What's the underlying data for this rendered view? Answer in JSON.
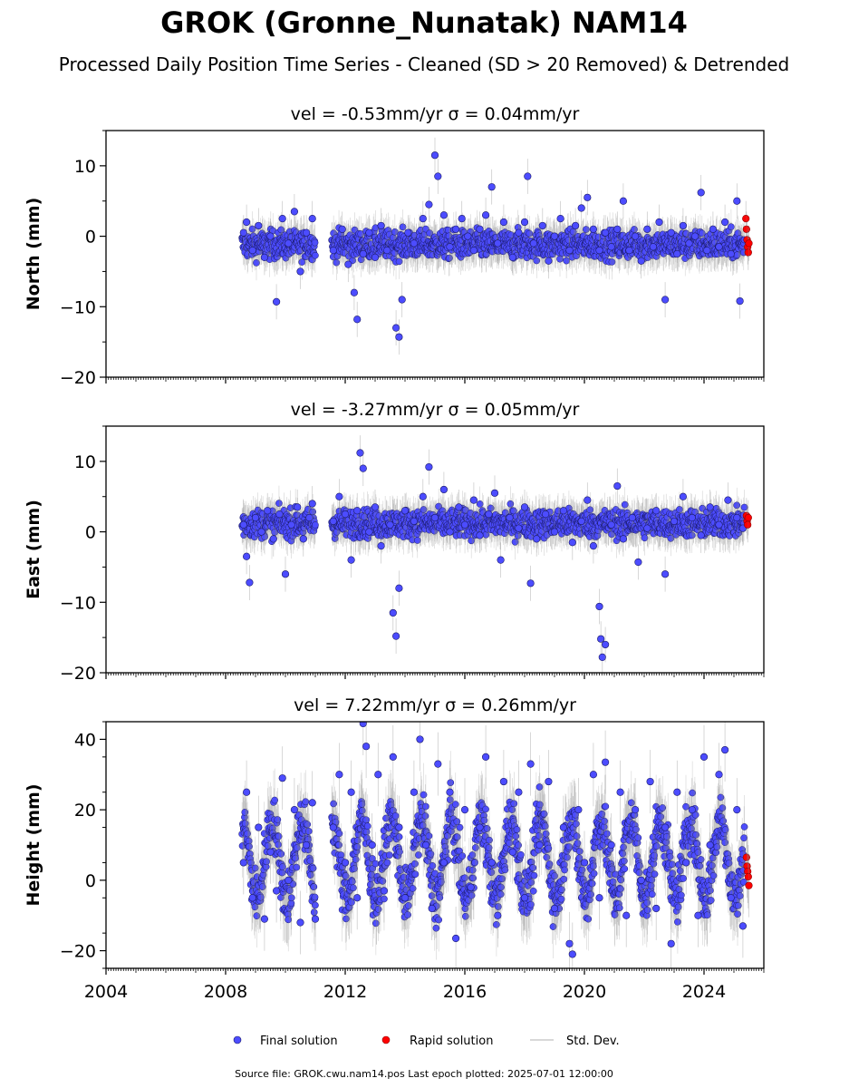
{
  "title": "GROK (Gronne_Nunatak) NAM14",
  "subtitle": "Processed Daily Position Time Series - Cleaned (SD > 20 Removed) & Detrended",
  "legend": {
    "final": "Final solution",
    "rapid": "Rapid solution",
    "std": "Std. Dev.",
    "placement": "bottom-center"
  },
  "footer": "Source file: GROK.cwu.nam14.pos  Last epoch plotted: 2025-07-01 12:00:00",
  "colors": {
    "final_fill": "#4c4cff",
    "final_edge": "#1a1a66",
    "rapid_fill": "#ff0000",
    "rapid_edge": "#8b0000",
    "errorbar": "#808080"
  },
  "chart_data": [
    {
      "type": "scatter",
      "component": "north",
      "title": "vel = -0.53mm/yr   σ = 0.04mm/yr",
      "ylabel": "North (mm)",
      "xlim": [
        2004.0,
        2026.0
      ],
      "ylim": [
        -20,
        15
      ],
      "yticks": [
        -20,
        -10,
        0,
        10
      ],
      "series": [
        {
          "name": "Final solution",
          "points": [
            [
              2008.6,
              0.5
            ],
            [
              2008.7,
              2.0
            ],
            [
              2008.9,
              -2.0
            ],
            [
              2009.1,
              1.5
            ],
            [
              2009.3,
              -3.0
            ],
            [
              2009.5,
              0.0
            ],
            [
              2009.7,
              -9.3
            ],
            [
              2009.9,
              2.5
            ],
            [
              2010.1,
              -1.0
            ],
            [
              2010.3,
              3.5
            ],
            [
              2010.5,
              -5.0
            ],
            [
              2010.7,
              0.5
            ],
            [
              2010.9,
              2.5
            ],
            [
              2011.6,
              -2.0
            ],
            [
              2011.9,
              1.0
            ],
            [
              2012.1,
              -4.0
            ],
            [
              2012.3,
              -8.0
            ],
            [
              2012.4,
              -11.8
            ],
            [
              2012.6,
              -2.5
            ],
            [
              2012.8,
              0.5
            ],
            [
              2013.0,
              -3.0
            ],
            [
              2013.2,
              1.5
            ],
            [
              2013.4,
              -2.0
            ],
            [
              2013.7,
              -13.0
            ],
            [
              2013.8,
              -14.3
            ],
            [
              2013.9,
              -9.0
            ],
            [
              2014.1,
              0.5
            ],
            [
              2014.3,
              -1.0
            ],
            [
              2014.6,
              2.5
            ],
            [
              2014.8,
              4.5
            ],
            [
              2015.0,
              11.5
            ],
            [
              2015.1,
              8.5
            ],
            [
              2015.3,
              3.0
            ],
            [
              2015.5,
              -1.5
            ],
            [
              2015.7,
              1.0
            ],
            [
              2015.9,
              2.5
            ],
            [
              2016.1,
              0.0
            ],
            [
              2016.3,
              -2.0
            ],
            [
              2016.5,
              1.0
            ],
            [
              2016.7,
              3.0
            ],
            [
              2016.9,
              7.0
            ],
            [
              2017.1,
              -1.0
            ],
            [
              2017.3,
              2.0
            ],
            [
              2017.6,
              -3.0
            ],
            [
              2017.8,
              0.5
            ],
            [
              2018.0,
              2.0
            ],
            [
              2018.1,
              8.5
            ],
            [
              2018.3,
              -1.0
            ],
            [
              2018.6,
              1.5
            ],
            [
              2018.8,
              -3.5
            ],
            [
              2019.0,
              0.0
            ],
            [
              2019.2,
              2.5
            ],
            [
              2019.5,
              -2.0
            ],
            [
              2019.7,
              1.5
            ],
            [
              2019.9,
              4.0
            ],
            [
              2020.1,
              5.5
            ],
            [
              2020.3,
              1.0
            ],
            [
              2020.5,
              -2.0
            ],
            [
              2020.7,
              0.5
            ],
            [
              2020.9,
              -1.5
            ],
            [
              2021.1,
              1.0
            ],
            [
              2021.3,
              5.0
            ],
            [
              2021.5,
              -2.0
            ],
            [
              2021.7,
              0.0
            ],
            [
              2021.9,
              -3.5
            ],
            [
              2022.1,
              1.0
            ],
            [
              2022.3,
              -1.5
            ],
            [
              2022.5,
              2.0
            ],
            [
              2022.7,
              -9.0
            ],
            [
              2022.9,
              0.5
            ],
            [
              2023.1,
              -2.5
            ],
            [
              2023.3,
              1.5
            ],
            [
              2023.5,
              -1.0
            ],
            [
              2023.7,
              0.0
            ],
            [
              2023.9,
              6.2
            ],
            [
              2024.1,
              -2.0
            ],
            [
              2024.3,
              1.0
            ],
            [
              2024.5,
              -1.5
            ],
            [
              2024.7,
              2.0
            ],
            [
              2024.9,
              -2.5
            ],
            [
              2025.1,
              5.0
            ],
            [
              2025.2,
              -9.2
            ]
          ]
        },
        {
          "name": "Rapid solution",
          "points": [
            [
              2025.4,
              2.5
            ],
            [
              2025.42,
              1.0
            ],
            [
              2025.44,
              -0.5
            ],
            [
              2025.46,
              -1.5
            ],
            [
              2025.48,
              -2.3
            ],
            [
              2025.5,
              -1.0
            ]
          ]
        }
      ]
    },
    {
      "type": "scatter",
      "component": "east",
      "title": "vel = -3.27mm/yr   σ = 0.05mm/yr",
      "ylabel": "East (mm)",
      "xlim": [
        2004.0,
        2026.0
      ],
      "ylim": [
        -20,
        15
      ],
      "yticks": [
        -20,
        -10,
        0,
        10
      ],
      "series": [
        {
          "name": "Final solution",
          "points": [
            [
              2008.6,
              1.0
            ],
            [
              2008.7,
              -3.5
            ],
            [
              2008.8,
              -7.2
            ],
            [
              2009.0,
              2.0
            ],
            [
              2009.2,
              0.0
            ],
            [
              2009.4,
              3.0
            ],
            [
              2009.6,
              -1.0
            ],
            [
              2009.8,
              2.5
            ],
            [
              2010.0,
              -6.0
            ],
            [
              2010.2,
              1.0
            ],
            [
              2010.4,
              3.5
            ],
            [
              2010.6,
              -1.0
            ],
            [
              2010.8,
              2.0
            ],
            [
              2010.9,
              4.0
            ],
            [
              2011.6,
              1.5
            ],
            [
              2011.8,
              5.0
            ],
            [
              2012.0,
              2.5
            ],
            [
              2012.2,
              -4.0
            ],
            [
              2012.4,
              3.0
            ],
            [
              2012.5,
              11.2
            ],
            [
              2012.6,
              9.0
            ],
            [
              2012.8,
              0.0
            ],
            [
              2013.0,
              3.5
            ],
            [
              2013.2,
              -2.0
            ],
            [
              2013.5,
              1.0
            ],
            [
              2013.6,
              -11.5
            ],
            [
              2013.7,
              -14.8
            ],
            [
              2013.8,
              -8.0
            ],
            [
              2014.0,
              3.0
            ],
            [
              2014.3,
              1.5
            ],
            [
              2014.6,
              5.0
            ],
            [
              2014.8,
              9.2
            ],
            [
              2015.0,
              2.0
            ],
            [
              2015.3,
              6.0
            ],
            [
              2015.5,
              0.0
            ],
            [
              2015.8,
              3.5
            ],
            [
              2016.0,
              1.0
            ],
            [
              2016.3,
              4.5
            ],
            [
              2016.5,
              -0.5
            ],
            [
              2016.8,
              2.5
            ],
            [
              2017.0,
              5.5
            ],
            [
              2017.2,
              -4.0
            ],
            [
              2017.5,
              2.0
            ],
            [
              2017.8,
              0.5
            ],
            [
              2018.0,
              3.5
            ],
            [
              2018.2,
              -7.3
            ],
            [
              2018.4,
              -1.0
            ],
            [
              2018.7,
              2.5
            ],
            [
              2019.0,
              0.0
            ],
            [
              2019.3,
              3.0
            ],
            [
              2019.6,
              -1.5
            ],
            [
              2019.9,
              1.5
            ],
            [
              2020.1,
              4.5
            ],
            [
              2020.3,
              -2.0
            ],
            [
              2020.5,
              -10.6
            ],
            [
              2020.55,
              -15.2
            ],
            [
              2020.6,
              -17.8
            ],
            [
              2020.7,
              -16.0
            ],
            [
              2020.9,
              1.0
            ],
            [
              2021.1,
              6.5
            ],
            [
              2021.3,
              -1.0
            ],
            [
              2021.6,
              2.0
            ],
            [
              2021.8,
              -4.3
            ],
            [
              2022.1,
              0.5
            ],
            [
              2022.4,
              3.0
            ],
            [
              2022.7,
              -6.0
            ],
            [
              2023.0,
              1.5
            ],
            [
              2023.3,
              5.0
            ],
            [
              2023.6,
              2.0
            ],
            [
              2023.9,
              -0.5
            ],
            [
              2024.2,
              3.5
            ],
            [
              2024.5,
              1.0
            ],
            [
              2024.8,
              4.5
            ],
            [
              2025.1,
              2.0
            ],
            [
              2025.3,
              0.5
            ]
          ]
        },
        {
          "name": "Rapid solution",
          "points": [
            [
              2025.42,
              2.3
            ],
            [
              2025.44,
              1.5
            ],
            [
              2025.46,
              1.0
            ],
            [
              2025.48,
              2.0
            ]
          ]
        }
      ]
    },
    {
      "type": "scatter",
      "component": "height",
      "title": "vel = 7.22mm/yr   σ = 0.26mm/yr",
      "ylabel": "Height (mm)",
      "xlim": [
        2004.0,
        2026.0
      ],
      "ylim": [
        -25,
        45
      ],
      "yticks": [
        -20,
        0,
        20,
        40
      ],
      "series": [
        {
          "name": "Final solution",
          "points": [
            [
              2008.6,
              5.0
            ],
            [
              2008.7,
              25.0
            ],
            [
              2008.9,
              -5.0
            ],
            [
              2009.1,
              15.0
            ],
            [
              2009.3,
              -11.0
            ],
            [
              2009.5,
              8.0
            ],
            [
              2009.7,
              -3.0
            ],
            [
              2009.9,
              29.0
            ],
            [
              2010.1,
              0.0
            ],
            [
              2010.3,
              20.0
            ],
            [
              2010.5,
              -12.0
            ],
            [
              2010.7,
              10.0
            ],
            [
              2010.9,
              22.0
            ],
            [
              2011.0,
              -11.0
            ],
            [
              2011.6,
              15.0
            ],
            [
              2011.8,
              30.0
            ],
            [
              2012.0,
              5.0
            ],
            [
              2012.2,
              25.0
            ],
            [
              2012.4,
              -5.0
            ],
            [
              2012.6,
              44.5
            ],
            [
              2012.7,
              38.0
            ],
            [
              2012.9,
              10.0
            ],
            [
              2013.1,
              30.0
            ],
            [
              2013.3,
              -3.0
            ],
            [
              2013.6,
              35.0
            ],
            [
              2013.8,
              15.0
            ],
            [
              2014.0,
              -5.0
            ],
            [
              2014.3,
              25.0
            ],
            [
              2014.5,
              40.0
            ],
            [
              2014.7,
              10.0
            ],
            [
              2014.9,
              -8.0
            ],
            [
              2015.1,
              33.0
            ],
            [
              2015.3,
              5.0
            ],
            [
              2015.5,
              25.0
            ],
            [
              2015.7,
              -16.5
            ],
            [
              2016.0,
              20.0
            ],
            [
              2016.2,
              -2.0
            ],
            [
              2016.5,
              15.0
            ],
            [
              2016.7,
              35.0
            ],
            [
              2016.9,
              5.0
            ],
            [
              2017.1,
              -10.0
            ],
            [
              2017.3,
              28.0
            ],
            [
              2017.6,
              8.0
            ],
            [
              2017.8,
              25.0
            ],
            [
              2018.0,
              -5.0
            ],
            [
              2018.2,
              33.0
            ],
            [
              2018.5,
              10.0
            ],
            [
              2018.8,
              28.0
            ],
            [
              2019.0,
              -8.0
            ],
            [
              2019.3,
              15.0
            ],
            [
              2019.5,
              -18.0
            ],
            [
              2019.6,
              -21.0
            ],
            [
              2019.8,
              20.0
            ],
            [
              2020.0,
              5.0
            ],
            [
              2020.3,
              30.0
            ],
            [
              2020.5,
              -5.0
            ],
            [
              2020.7,
              33.5
            ],
            [
              2020.9,
              10.0
            ],
            [
              2021.2,
              25.0
            ],
            [
              2021.4,
              -10.0
            ],
            [
              2021.7,
              20.0
            ],
            [
              2021.9,
              0.0
            ],
            [
              2022.2,
              28.0
            ],
            [
              2022.4,
              -8.0
            ],
            [
              2022.7,
              15.0
            ],
            [
              2022.9,
              -18.0
            ],
            [
              2023.1,
              25.0
            ],
            [
              2023.4,
              5.0
            ],
            [
              2023.6,
              20.0
            ],
            [
              2023.8,
              -10.0
            ],
            [
              2024.0,
              35.0
            ],
            [
              2024.2,
              10.0
            ],
            [
              2024.5,
              30.0
            ],
            [
              2024.7,
              37.0
            ],
            [
              2024.9,
              -5.0
            ],
            [
              2025.1,
              20.0
            ],
            [
              2025.3,
              -13.0
            ]
          ]
        },
        {
          "name": "Rapid solution",
          "points": [
            [
              2025.42,
              6.5
            ],
            [
              2025.44,
              4.0
            ],
            [
              2025.46,
              2.5
            ],
            [
              2025.48,
              1.0
            ],
            [
              2025.5,
              -1.5
            ]
          ]
        }
      ]
    }
  ],
  "xticklabels": [
    "2004",
    "2008",
    "2012",
    "2016",
    "2020",
    "2024"
  ]
}
